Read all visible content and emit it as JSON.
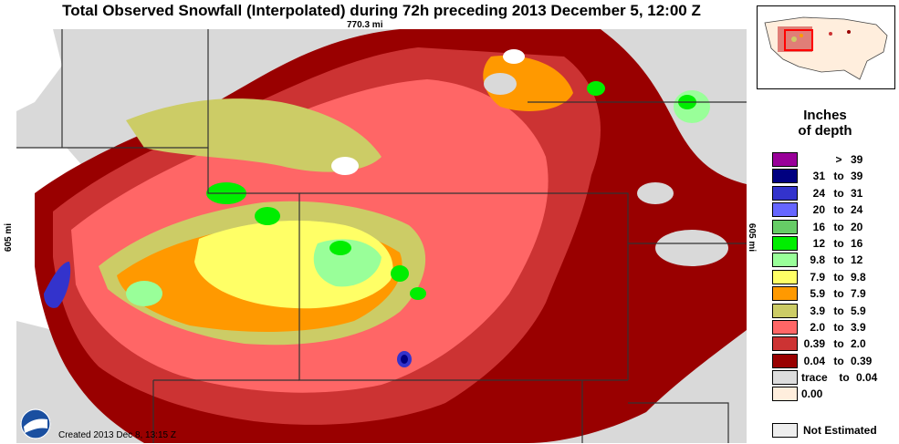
{
  "header": {
    "title": "Total Observed Snowfall (Interpolated) during 72h preceding 2013 December 5, 12:00 Z",
    "scale_horizontal": "770.3 mi",
    "scale_vertical_left": "605 mi",
    "scale_vertical_right": "605 mi"
  },
  "footer": {
    "created": "Created 2013 Dec 8, 13:15 Z",
    "logo_icon": "noaa-logo"
  },
  "inset": {
    "icon": "us-overview-locator-map",
    "highlight_color": "#ff0000"
  },
  "legend": {
    "title_line1": "Inches",
    "title_line2": "of depth",
    "to_word": "to",
    "items": [
      {
        "lo": "",
        "hi": "39",
        "gt": ">",
        "color": "#990099"
      },
      {
        "lo": "31",
        "hi": "39",
        "color": "#000080"
      },
      {
        "lo": "24",
        "hi": "31",
        "color": "#3333cc"
      },
      {
        "lo": "20",
        "hi": "24",
        "color": "#6666ff"
      },
      {
        "lo": "16",
        "hi": "20",
        "color": "#66cc66"
      },
      {
        "lo": "12",
        "hi": "16",
        "color": "#00ee00"
      },
      {
        "lo": "9.8",
        "hi": "12",
        "color": "#99ff99"
      },
      {
        "lo": "7.9",
        "hi": "9.8",
        "color": "#ffff66"
      },
      {
        "lo": "5.9",
        "hi": "7.9",
        "color": "#ff9900"
      },
      {
        "lo": "3.9",
        "hi": "5.9",
        "color": "#cccc66"
      },
      {
        "lo": "2.0",
        "hi": "3.9",
        "color": "#ff6666"
      },
      {
        "lo": "0.39",
        "hi": "2.0",
        "color": "#cc3333"
      },
      {
        "lo": "0.04",
        "hi": "0.39",
        "color": "#990000"
      },
      {
        "lo": "trace",
        "hi": "0.04",
        "color": "#dddddd"
      },
      {
        "lo": "0.00",
        "hi": "",
        "color": "#ffeedd"
      }
    ],
    "not_estimated_label": "Not Estimated",
    "not_estimated_color": "#eeeeee"
  }
}
